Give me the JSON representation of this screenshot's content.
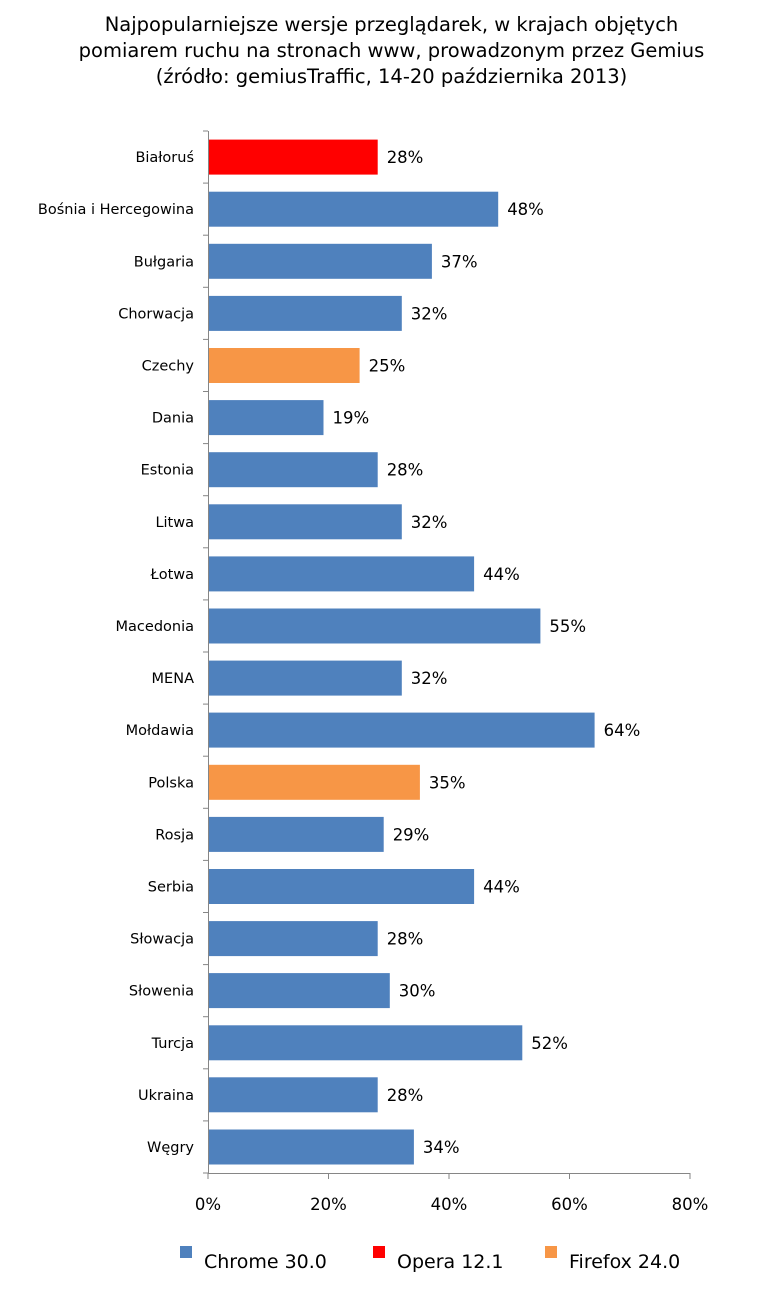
{
  "chart_data": {
    "type": "bar",
    "orientation": "horizontal",
    "title_lines": [
      "Najpopularniejsze wersje przeglądarek, w krajach objętych",
      "pomiarem ruchu na stronach www, prowadzonym przez Gemius",
      "(źródło: gemiusTraffic, 14-20 października 2013)"
    ],
    "categories": [
      "Białoruś",
      "Bośnia i Hercegowina",
      "Bułgaria",
      "Chorwacja",
      "Czechy",
      "Dania",
      "Estonia",
      "Litwa",
      "Łotwa",
      "Macedonia",
      "MENA",
      "Mołdawia",
      "Polska",
      "Rosja",
      "Serbia",
      "Słowacja",
      "Słowenia",
      "Turcja",
      "Ukraina",
      "Węgry"
    ],
    "values": [
      28,
      48,
      37,
      32,
      25,
      19,
      28,
      32,
      44,
      55,
      32,
      64,
      35,
      29,
      44,
      28,
      30,
      52,
      28,
      34
    ],
    "value_labels": [
      "28%",
      "48%",
      "37%",
      "32%",
      "25%",
      "19%",
      "28%",
      "32%",
      "44%",
      "55%",
      "32%",
      "64%",
      "35%",
      "29%",
      "44%",
      "28%",
      "30%",
      "52%",
      "28%",
      "34%"
    ],
    "series_index": [
      1,
      0,
      0,
      0,
      2,
      0,
      0,
      0,
      0,
      0,
      0,
      0,
      2,
      0,
      0,
      0,
      0,
      0,
      0,
      0
    ],
    "series": [
      {
        "name": "Chrome 30.0",
        "color": "#4f81bd"
      },
      {
        "name": "Opera 12.1",
        "color": "#ff0000"
      },
      {
        "name": "Firefox 24.0",
        "color": "#f79646"
      }
    ],
    "xlim": [
      0,
      80
    ],
    "xticks": [
      0,
      20,
      40,
      60,
      80
    ],
    "xtick_labels": [
      "0%",
      "20%",
      "40%",
      "60%",
      "80%"
    ],
    "grid": false,
    "legend_position": "bottom"
  }
}
